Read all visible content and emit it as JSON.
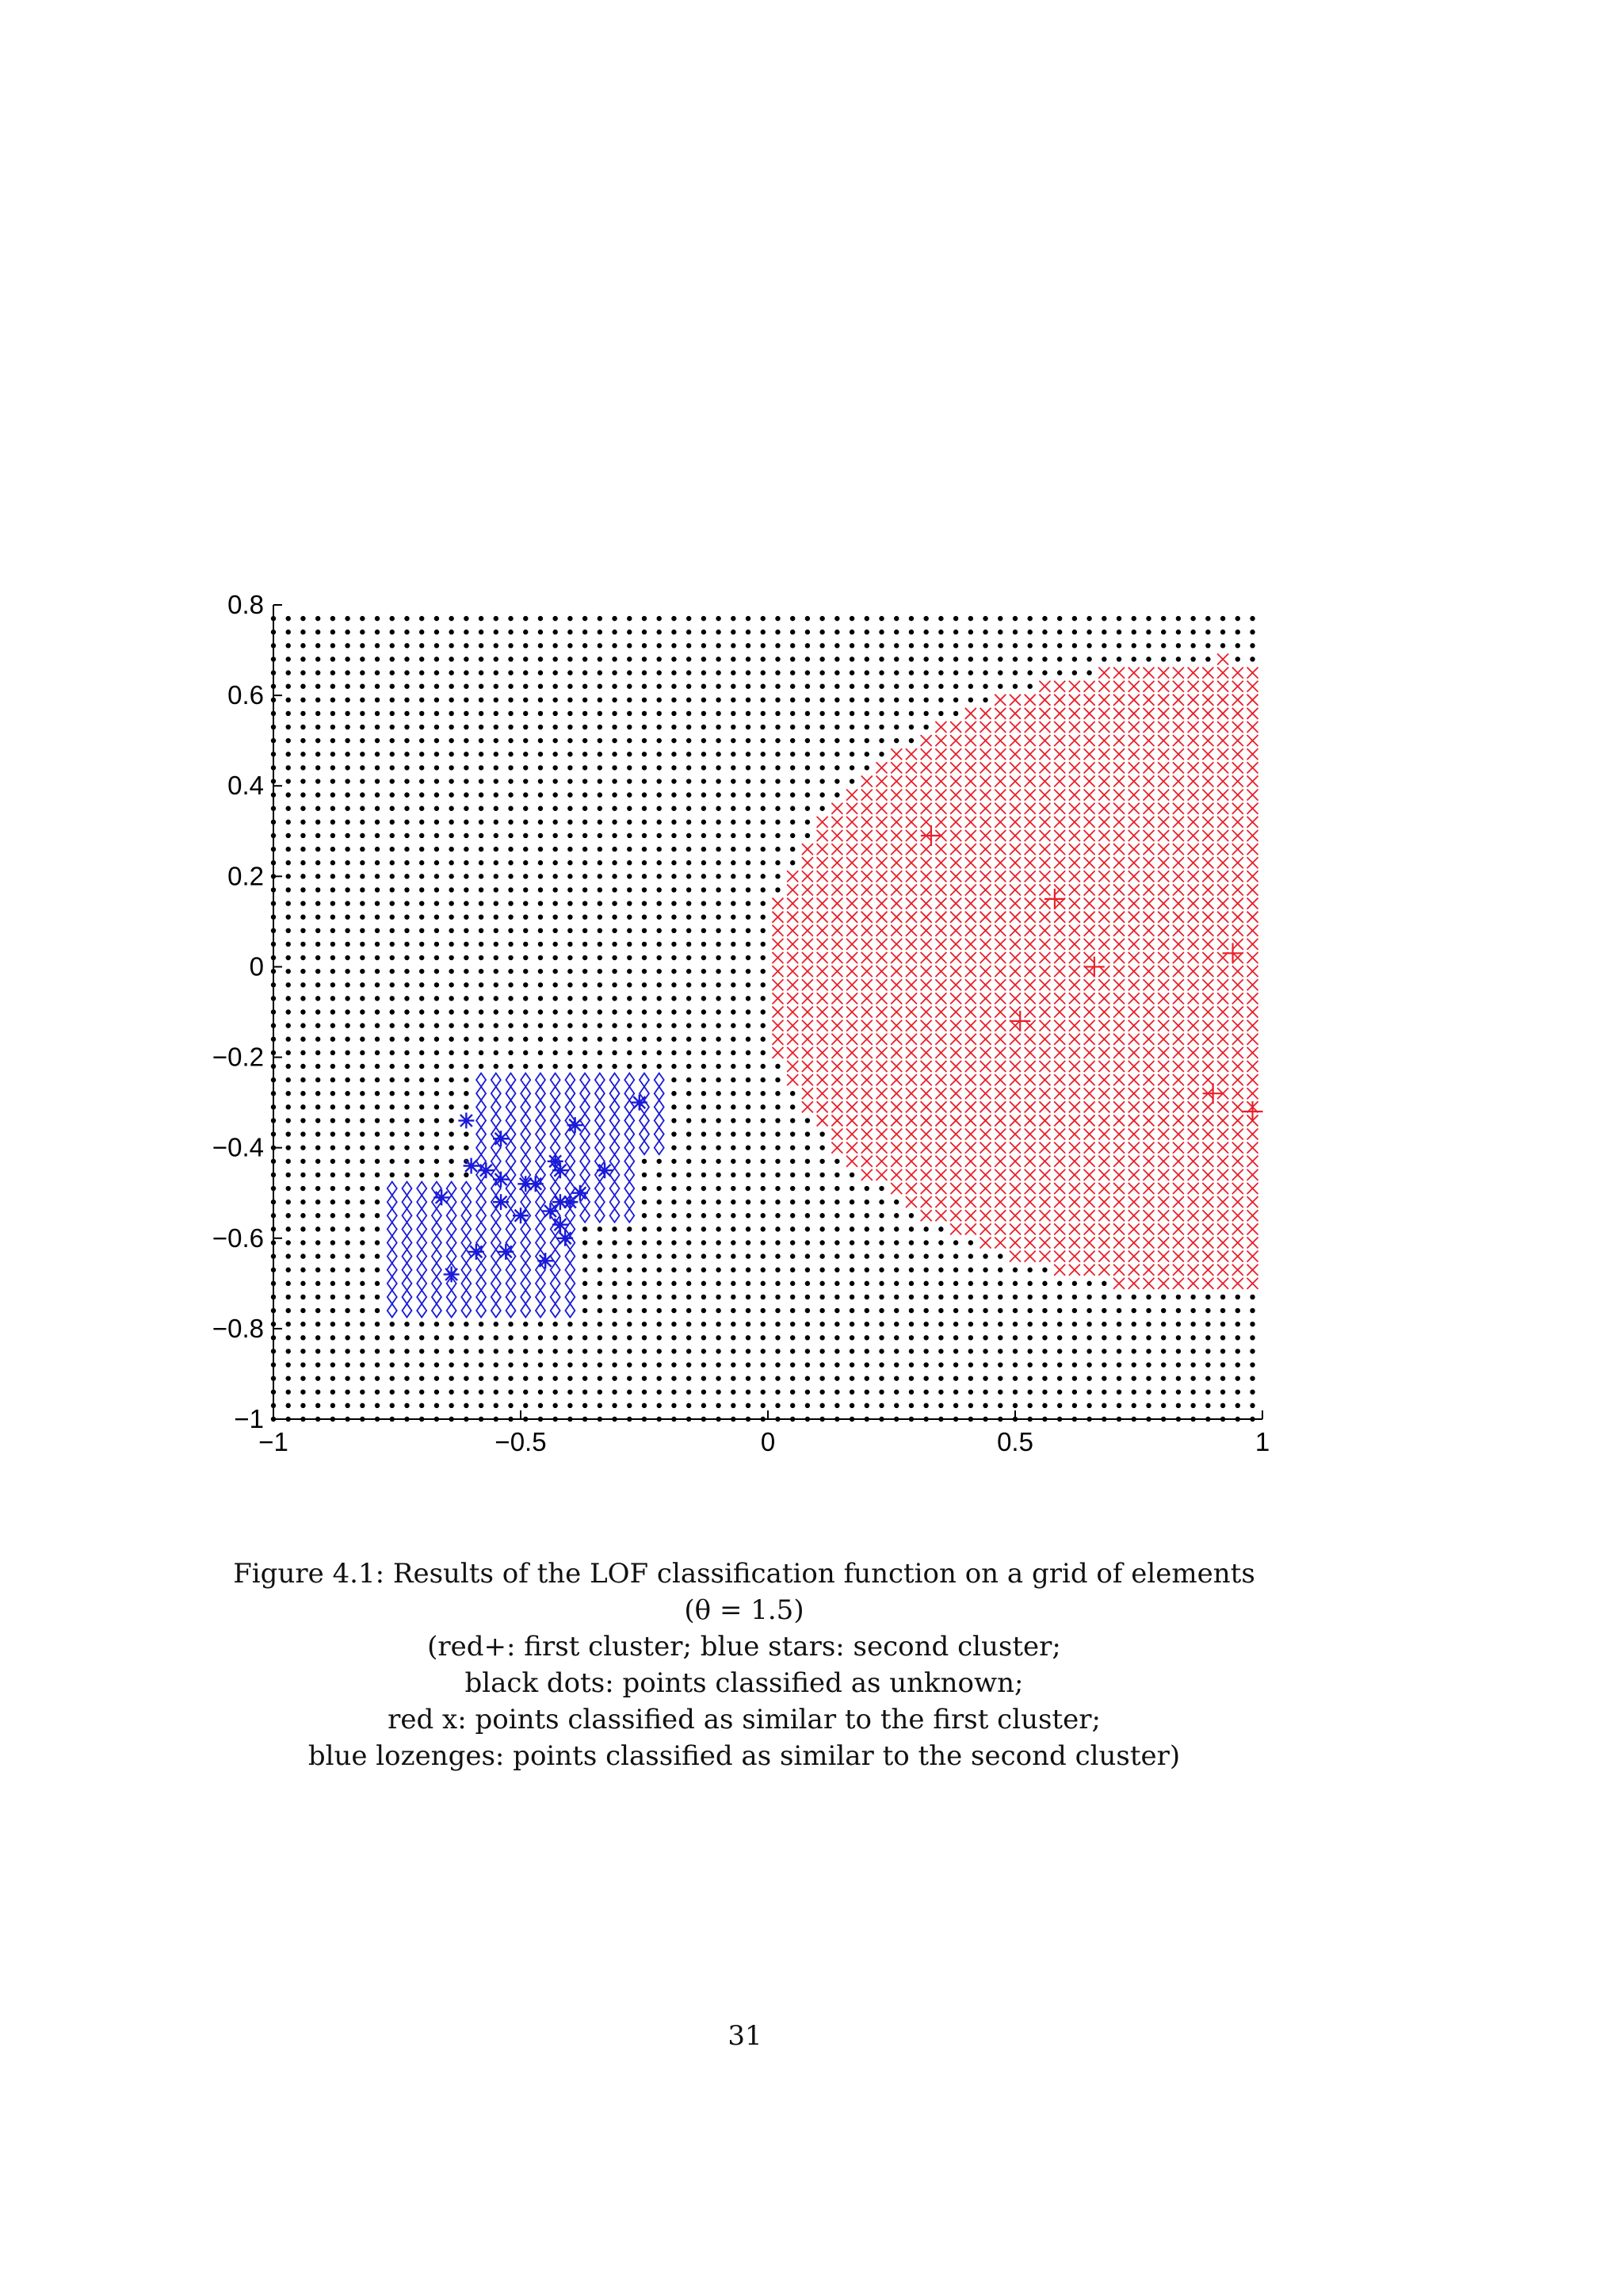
{
  "chart_data": {
    "type": "scatter",
    "xlim": [
      -1,
      1
    ],
    "ylim": [
      -1,
      0.8
    ],
    "xticks": [
      -1,
      -0.5,
      0,
      0.5,
      1
    ],
    "xtick_labels": [
      "−1",
      "−0.5",
      "0",
      "0.5",
      "1"
    ],
    "yticks": [
      -1,
      -0.8,
      -0.6,
      -0.4,
      -0.2,
      0,
      0.2,
      0.4,
      0.6,
      0.8
    ],
    "ytick_labels": [
      "−1",
      "−0.8",
      "−0.6",
      "−0.4",
      "−0.2",
      "0",
      "0.2",
      "0.4",
      "0.6",
      "0.8"
    ],
    "grid": false,
    "legend": "none",
    "grid_step": 0.03,
    "series": [
      {
        "marker": "dot",
        "color": "#000000",
        "region": "all grid points not in the other regions",
        "x_range": [
          -1,
          1
        ],
        "y_range": [
          -1,
          0.77
        ]
      },
      {
        "marker": "x",
        "color": "#e8202a",
        "region": "around first cluster",
        "points": []
      },
      {
        "marker": "diamond",
        "color": "#1a1ad8",
        "region": "around second cluster",
        "points": []
      },
      {
        "marker": "plus",
        "color": "#e8202a",
        "points": [
          [
            0.33,
            0.29
          ],
          [
            0.58,
            0.15
          ],
          [
            0.66,
            0.0
          ],
          [
            0.94,
            0.03
          ],
          [
            0.51,
            -0.12
          ],
          [
            0.9,
            -0.28
          ],
          [
            0.98,
            -0.32
          ]
        ]
      },
      {
        "marker": "star",
        "color": "#1a1ad8",
        "points": [
          [
            -0.61,
            -0.34
          ],
          [
            -0.39,
            -0.35
          ],
          [
            -0.26,
            -0.3
          ],
          [
            -0.54,
            -0.38
          ],
          [
            -0.6,
            -0.44
          ],
          [
            -0.57,
            -0.45
          ],
          [
            -0.43,
            -0.43
          ],
          [
            -0.42,
            -0.45
          ],
          [
            -0.33,
            -0.45
          ],
          [
            -0.54,
            -0.47
          ],
          [
            -0.49,
            -0.48
          ],
          [
            -0.47,
            -0.48
          ],
          [
            -0.66,
            -0.51
          ],
          [
            -0.54,
            -0.52
          ],
          [
            -0.42,
            -0.52
          ],
          [
            -0.4,
            -0.52
          ],
          [
            -0.38,
            -0.5
          ],
          [
            -0.5,
            -0.55
          ],
          [
            -0.44,
            -0.54
          ],
          [
            -0.42,
            -0.57
          ],
          [
            -0.41,
            -0.6
          ],
          [
            -0.59,
            -0.63
          ],
          [
            -0.53,
            -0.63
          ],
          [
            -0.45,
            -0.65
          ],
          [
            -0.64,
            -0.68
          ]
        ]
      }
    ]
  },
  "caption": {
    "line1": "Figure 4.1: Results of the LOF classification function on a grid of elements",
    "line2": "(θ = 1.5)",
    "line3": "(red+: first cluster; blue stars: second cluster;",
    "line4": "black dots: points classified as unknown;",
    "line5": "red x: points classified as similar to the first cluster;",
    "line6": "blue lozenges: points classified as similar to the second cluster)"
  },
  "page_number": "31"
}
